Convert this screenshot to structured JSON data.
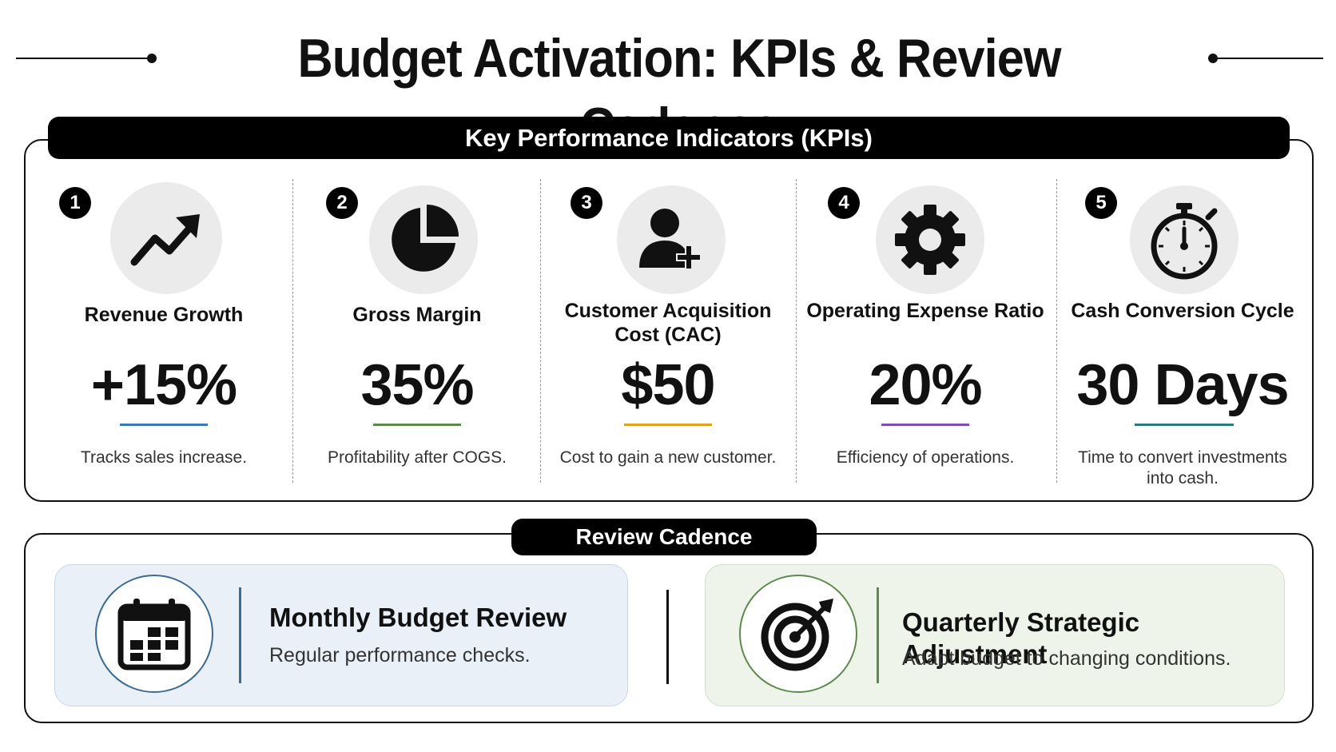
{
  "title": "Budget Activation: KPIs & Review Cadence",
  "kpi_section": {
    "heading": "Key Performance Indicators (KPIs)",
    "items": [
      {
        "number": "1",
        "icon": "trend-up-arrow-icon",
        "title": "Revenue Growth",
        "value": "+15%",
        "description": "Tracks sales increase.",
        "accent": "#3a78b8"
      },
      {
        "number": "2",
        "icon": "pie-chart-icon",
        "title": "Gross Margin",
        "value": "35%",
        "description": "Profitability after COGS.",
        "accent": "#5b8a4a"
      },
      {
        "number": "3",
        "icon": "add-user-icon",
        "title": "Customer Acquisition Cost (CAC)",
        "value": "$50",
        "description": "Cost to gain a new customer.",
        "accent": "#d9a520"
      },
      {
        "number": "4",
        "icon": "gear-icon",
        "title": "Operating Expense Ratio",
        "value": "20%",
        "description": "Efficiency of operations.",
        "accent": "#7b4fb0"
      },
      {
        "number": "5",
        "icon": "stopwatch-icon",
        "title": "Cash Conversion Cycle",
        "value": "30 Days",
        "description": "Time to convert investments into cash.",
        "accent": "#2a7a7a"
      }
    ]
  },
  "review_section": {
    "heading": "Review Cadence",
    "items": [
      {
        "icon": "calendar-icon",
        "title": "Monthly Budget Review",
        "description": "Regular performance checks.",
        "accent": "#3b6a92",
        "background": "#e9f0f8"
      },
      {
        "icon": "target-icon",
        "title": "Quarterly Strategic Adjustment",
        "description": "Adapt budget to changing conditions.",
        "accent": "#5e8a4e",
        "background": "#eef4ea"
      }
    ]
  }
}
